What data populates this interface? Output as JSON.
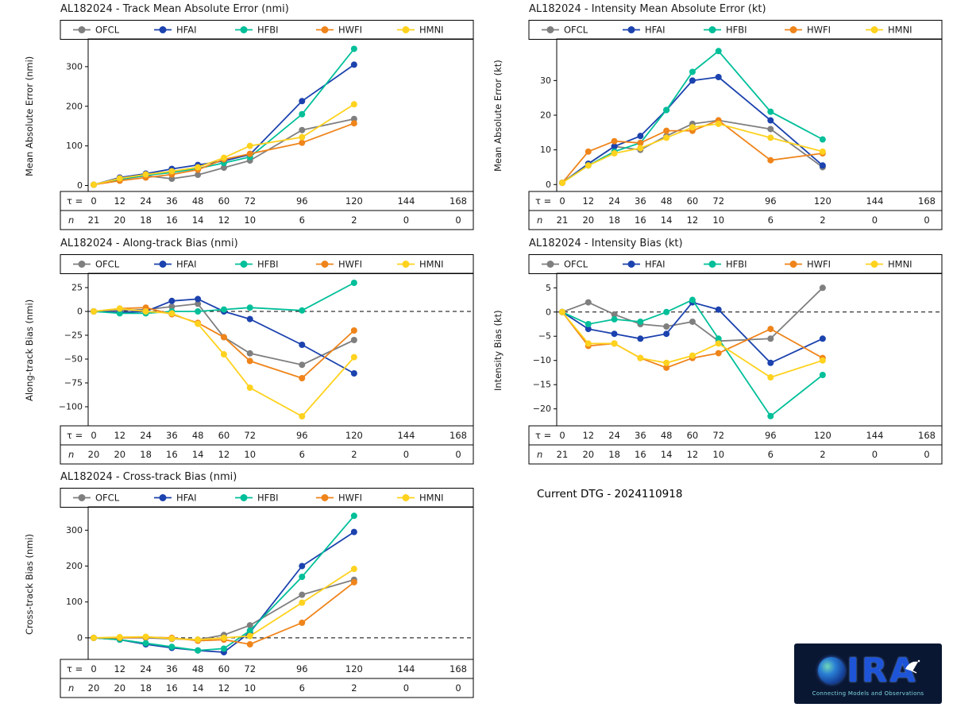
{
  "models": [
    {
      "name": "OFCL",
      "color": "#7f7f7f"
    },
    {
      "name": "HFAI",
      "color": "#1b42ae"
    },
    {
      "name": "HFBI",
      "color": "#00bf99"
    },
    {
      "name": "HWFI",
      "color": "#ef841a"
    },
    {
      "name": "HMNI",
      "color": "#ffd21e"
    }
  ],
  "annotations": {
    "current_dtg": "Current DTG - 2024110918"
  },
  "logo": {
    "text": "CIRA",
    "text_rest": "IRA",
    "tagline": "Connecting Models and Observations"
  },
  "chart_data": [
    {
      "type": "line",
      "title": "AL182024 - Track Mean Absolute Error (nmi)",
      "ylabel": "Mean Absolute Error (nmi)",
      "yticks": [
        0,
        100,
        200,
        300
      ],
      "ylim": [
        -15,
        370
      ],
      "zero_line": false,
      "tau_prefix": "τ =",
      "n_prefix": "n",
      "x_hours": [
        0,
        12,
        24,
        36,
        48,
        60,
        72,
        96,
        120,
        144,
        168
      ],
      "n": [
        21,
        20,
        18,
        16,
        14,
        12,
        10,
        6,
        2,
        0,
        0
      ],
      "series": [
        {
          "name": "OFCL",
          "values": [
            2,
            15,
            25,
            17,
            27,
            45,
            63,
            140,
            168,
            null,
            null
          ]
        },
        {
          "name": "HFAI",
          "values": [
            2,
            20,
            30,
            42,
            52,
            62,
            78,
            213,
            305,
            null,
            null
          ]
        },
        {
          "name": "HFBI",
          "values": [
            2,
            16,
            26,
            33,
            43,
            57,
            72,
            180,
            345,
            null,
            null
          ]
        },
        {
          "name": "HWFI",
          "values": [
            2,
            12,
            20,
            28,
            40,
            66,
            80,
            108,
            157,
            null,
            null
          ]
        },
        {
          "name": "HMNI",
          "values": [
            2,
            18,
            28,
            36,
            46,
            70,
            100,
            122,
            205,
            null,
            null
          ]
        }
      ]
    },
    {
      "type": "line",
      "title": "AL182024 - Intensity Mean Absolute Error (kt)",
      "ylabel": "Mean Absolute Error (kt)",
      "yticks": [
        0,
        10,
        20,
        30
      ],
      "ylim": [
        -2,
        42
      ],
      "zero_line": false,
      "tau_prefix": "τ =",
      "n_prefix": "n",
      "x_hours": [
        0,
        12,
        24,
        36,
        48,
        60,
        72,
        96,
        120,
        144,
        168
      ],
      "n": [
        21,
        20,
        18,
        16,
        14,
        12,
        10,
        6,
        2,
        0,
        0
      ],
      "series": [
        {
          "name": "OFCL",
          "values": [
            0.5,
            6,
            11,
            10,
            14,
            17.5,
            18.5,
            16,
            5,
            null,
            null
          ]
        },
        {
          "name": "HFAI",
          "values": [
            0.5,
            6,
            11,
            14,
            21.5,
            30,
            31,
            18.5,
            5.5,
            null,
            null
          ]
        },
        {
          "name": "HFBI",
          "values": [
            0.5,
            5.5,
            9.5,
            12,
            21.5,
            32.5,
            38.5,
            21,
            13,
            null,
            null
          ]
        },
        {
          "name": "HWFI",
          "values": [
            0.5,
            9.5,
            12.5,
            12,
            15.5,
            15.5,
            18.5,
            7,
            9,
            null,
            null
          ]
        },
        {
          "name": "HMNI",
          "values": [
            0.5,
            5.5,
            9,
            10.5,
            13.5,
            16.5,
            17.5,
            13.5,
            9.5,
            null,
            null
          ]
        }
      ]
    },
    {
      "type": "line",
      "title": "AL182024 - Along-track Bias (nmi)",
      "ylabel": "Along-track Bias (nmi)",
      "yticks": [
        25,
        0,
        -25,
        -50,
        -75,
        -100
      ],
      "ylim": [
        -120,
        40
      ],
      "zero_line": true,
      "tau_prefix": "τ =",
      "n_prefix": "n",
      "x_hours": [
        0,
        12,
        24,
        36,
        48,
        60,
        72,
        96,
        120,
        144,
        168
      ],
      "n": [
        20,
        20,
        18,
        16,
        14,
        12,
        10,
        6,
        2,
        0,
        0
      ],
      "series": [
        {
          "name": "OFCL",
          "values": [
            0,
            1,
            2,
            5,
            8,
            -27,
            -44,
            -56,
            -30,
            null,
            null
          ]
        },
        {
          "name": "HFAI",
          "values": [
            0,
            -1,
            0,
            11,
            13,
            0,
            -8,
            -35,
            -65,
            null,
            null
          ]
        },
        {
          "name": "HFBI",
          "values": [
            0,
            -2,
            -2,
            0,
            0,
            2,
            4,
            1,
            30,
            null,
            null
          ]
        },
        {
          "name": "HWFI",
          "values": [
            0,
            3,
            4,
            -3,
            -12,
            -27,
            -52,
            -70,
            -20,
            null,
            null
          ]
        },
        {
          "name": "HMNI",
          "values": [
            0,
            3,
            0,
            -2,
            -13,
            -45,
            -80,
            -110,
            -48,
            null,
            null
          ]
        }
      ]
    },
    {
      "type": "line",
      "title": "AL182024 - Intensity Bias (kt)",
      "ylabel": "Intensity Bias (kt)",
      "yticks": [
        5,
        0,
        -5,
        -10,
        -15,
        -20
      ],
      "ylim": [
        -23.5,
        8
      ],
      "zero_line": true,
      "tau_prefix": "τ =",
      "n_prefix": "n",
      "x_hours": [
        0,
        12,
        24,
        36,
        48,
        60,
        72,
        96,
        120,
        144,
        168
      ],
      "n": [
        21,
        20,
        18,
        16,
        14,
        12,
        10,
        6,
        2,
        0,
        0
      ],
      "series": [
        {
          "name": "OFCL",
          "values": [
            0,
            2,
            -0.5,
            -2.5,
            -3,
            -2,
            -6,
            -5.5,
            5,
            null,
            null
          ]
        },
        {
          "name": "HFAI",
          "values": [
            0,
            -3.5,
            -4.5,
            -5.5,
            -4.5,
            2,
            0.5,
            -10.5,
            -5.5,
            null,
            null
          ]
        },
        {
          "name": "HFBI",
          "values": [
            0,
            -2.5,
            -1.5,
            -2,
            0,
            2.5,
            -5.5,
            -21.5,
            -13,
            null,
            null
          ]
        },
        {
          "name": "HWFI",
          "values": [
            0,
            -7,
            -6.5,
            -9.5,
            -11.5,
            -9.5,
            -8.5,
            -3.5,
            -9.5,
            null,
            null
          ]
        },
        {
          "name": "HMNI",
          "values": [
            0,
            -6.5,
            -6.5,
            -9.5,
            -10.5,
            -9,
            -6.5,
            -13.5,
            -10,
            null,
            null
          ]
        }
      ]
    },
    {
      "type": "line",
      "title": "AL182024 - Cross-track Bias (nmi)",
      "ylabel": "Cross-track Bias (nmi)",
      "yticks": [
        0,
        100,
        200,
        300
      ],
      "ylim": [
        -60,
        365
      ],
      "zero_line": true,
      "tau_prefix": "τ =",
      "n_prefix": "n",
      "x_hours": [
        0,
        12,
        24,
        36,
        48,
        60,
        72,
        96,
        120,
        144,
        168
      ],
      "n": [
        20,
        20,
        18,
        16,
        14,
        12,
        10,
        6,
        2,
        0,
        0
      ],
      "series": [
        {
          "name": "OFCL",
          "values": [
            0,
            0,
            0,
            -3,
            -5,
            8,
            35,
            120,
            162,
            null,
            null
          ]
        },
        {
          "name": "HFAI",
          "values": [
            0,
            -5,
            -18,
            -28,
            -35,
            -40,
            15,
            200,
            295,
            null,
            null
          ]
        },
        {
          "name": "HFBI",
          "values": [
            0,
            -5,
            -15,
            -25,
            -35,
            -30,
            20,
            170,
            340,
            null,
            null
          ]
        },
        {
          "name": "HWFI",
          "values": [
            0,
            0,
            2,
            0,
            -8,
            -5,
            -18,
            42,
            155,
            null,
            null
          ]
        },
        {
          "name": "HMNI",
          "values": [
            0,
            2,
            3,
            -2,
            -5,
            0,
            5,
            98,
            192,
            null,
            null
          ]
        }
      ]
    }
  ]
}
